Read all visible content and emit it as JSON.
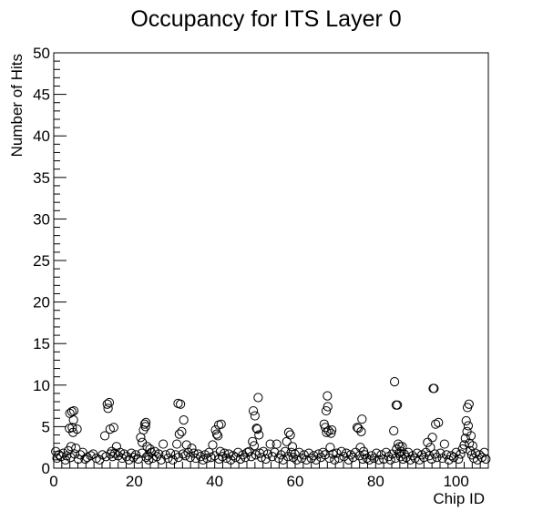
{
  "chart_data": {
    "type": "scatter",
    "title": "Occupancy for ITS Layer 0",
    "xlabel": "Chip ID",
    "ylabel": "Number of Hits",
    "xlim": [
      0,
      108
    ],
    "ylim": [
      0,
      50
    ],
    "x_ticks": [
      0,
      20,
      40,
      60,
      80,
      100
    ],
    "y_ticks": [
      0,
      5,
      10,
      15,
      20,
      25,
      30,
      35,
      40,
      45,
      50
    ],
    "grid": false,
    "legend": "none",
    "marker": "open-circle",
    "marker_color": "#000000",
    "points": [
      [
        0.5,
        2.0
      ],
      [
        0.8,
        1.2
      ],
      [
        1.3,
        1.6
      ],
      [
        1.8,
        1.4
      ],
      [
        2.4,
        1.8
      ],
      [
        2.9,
        1.0
      ],
      [
        3.2,
        1.5
      ],
      [
        3.6,
        2.1
      ],
      [
        3.9,
        4.8
      ],
      [
        4.0,
        6.6
      ],
      [
        4.2,
        1.3
      ],
      [
        4.3,
        2.6
      ],
      [
        4.5,
        6.8
      ],
      [
        4.6,
        4.9
      ],
      [
        4.8,
        4.3
      ],
      [
        4.9,
        5.8
      ],
      [
        5.0,
        6.9
      ],
      [
        5.2,
        1.7
      ],
      [
        5.5,
        2.4
      ],
      [
        5.8,
        4.7
      ],
      [
        6.1,
        1.1
      ],
      [
        6.6,
        1.6
      ],
      [
        7.2,
        1.9
      ],
      [
        7.8,
        1.1
      ],
      [
        8.3,
        1.3
      ],
      [
        9.2,
        1.5
      ],
      [
        9.8,
        1.7
      ],
      [
        10.6,
        1.2
      ],
      [
        11.4,
        1.0
      ],
      [
        12.1,
        1.6
      ],
      [
        12.7,
        3.9
      ],
      [
        13.0,
        1.4
      ],
      [
        13.3,
        7.7
      ],
      [
        13.5,
        7.2
      ],
      [
        13.8,
        7.9
      ],
      [
        14.0,
        4.7
      ],
      [
        14.1,
        1.7
      ],
      [
        14.4,
        2.0
      ],
      [
        14.6,
        1.4
      ],
      [
        14.9,
        4.9
      ],
      [
        15.2,
        1.8
      ],
      [
        15.6,
        2.6
      ],
      [
        16.0,
        1.5
      ],
      [
        16.5,
        1.9
      ],
      [
        17.0,
        1.2
      ],
      [
        17.5,
        1.7
      ],
      [
        18.1,
        1.4
      ],
      [
        18.7,
        1.0
      ],
      [
        19.3,
        1.8
      ],
      [
        19.8,
        1.3
      ],
      [
        20.4,
        1.6
      ],
      [
        21.0,
        1.1
      ],
      [
        21.6,
        3.7
      ],
      [
        21.9,
        1.8
      ],
      [
        22.0,
        3.1
      ],
      [
        22.3,
        4.6
      ],
      [
        22.6,
        5.3
      ],
      [
        22.8,
        5.0
      ],
      [
        22.9,
        5.5
      ],
      [
        23.0,
        1.3
      ],
      [
        23.2,
        2.6
      ],
      [
        23.4,
        1.5
      ],
      [
        23.6,
        1.0
      ],
      [
        23.9,
        2.3
      ],
      [
        24.2,
        1.9
      ],
      [
        24.6,
        1.2
      ],
      [
        25.1,
        2.0
      ],
      [
        25.6,
        1.4
      ],
      [
        26.1,
        1.7
      ],
      [
        26.7,
        1.0
      ],
      [
        27.2,
        2.9
      ],
      [
        27.8,
        1.6
      ],
      [
        28.4,
        1.2
      ],
      [
        29.0,
        1.8
      ],
      [
        29.6,
        1.0
      ],
      [
        30.3,
        1.6
      ],
      [
        30.6,
        2.9
      ],
      [
        30.9,
        7.8
      ],
      [
        31.0,
        1.3
      ],
      [
        31.2,
        4.1
      ],
      [
        31.5,
        7.7
      ],
      [
        31.8,
        4.4
      ],
      [
        32.1,
        1.7
      ],
      [
        32.3,
        5.8
      ],
      [
        32.7,
        1.5
      ],
      [
        33.0,
        2.8
      ],
      [
        33.4,
        1.9
      ],
      [
        33.9,
        1.3
      ],
      [
        34.3,
        2.4
      ],
      [
        34.8,
        1.8
      ],
      [
        35.3,
        1.2
      ],
      [
        35.9,
        1.7
      ],
      [
        36.5,
        1.4
      ],
      [
        37.1,
        1.0
      ],
      [
        37.6,
        1.6
      ],
      [
        38.1,
        1.2
      ],
      [
        38.6,
        1.9
      ],
      [
        39.1,
        1.3
      ],
      [
        39.5,
        2.8
      ],
      [
        40.0,
        1.5
      ],
      [
        40.2,
        4.6
      ],
      [
        40.5,
        4.1
      ],
      [
        40.8,
        3.9
      ],
      [
        41.0,
        5.2
      ],
      [
        41.1,
        1.1
      ],
      [
        41.4,
        2.0
      ],
      [
        41.6,
        5.3
      ],
      [
        41.9,
        1.4
      ],
      [
        42.4,
        1.8
      ],
      [
        42.9,
        1.2
      ],
      [
        43.5,
        1.7
      ],
      [
        44.0,
        1.0
      ],
      [
        44.6,
        1.5
      ],
      [
        45.2,
        1.3
      ],
      [
        45.8,
        1.9
      ],
      [
        46.4,
        1.1
      ],
      [
        47.0,
        1.6
      ],
      [
        47.6,
        1.3
      ],
      [
        48.1,
        1.9
      ],
      [
        48.6,
        2.0
      ],
      [
        49.1,
        1.4
      ],
      [
        49.4,
        3.2
      ],
      [
        49.6,
        6.9
      ],
      [
        49.8,
        2.7
      ],
      [
        50.0,
        6.3
      ],
      [
        50.2,
        1.6
      ],
      [
        50.4,
        4.8
      ],
      [
        50.6,
        4.7
      ],
      [
        50.8,
        8.5
      ],
      [
        51.0,
        4.0
      ],
      [
        51.2,
        1.8
      ],
      [
        51.6,
        1.3
      ],
      [
        52.1,
        2.0
      ],
      [
        52.7,
        1.1
      ],
      [
        53.2,
        1.7
      ],
      [
        53.8,
        2.9
      ],
      [
        54.3,
        1.4
      ],
      [
        54.9,
        1.9
      ],
      [
        55.4,
        2.9
      ],
      [
        55.9,
        1.2
      ],
      [
        56.5,
        1.6
      ],
      [
        57.0,
        1.0
      ],
      [
        57.5,
        2.0
      ],
      [
        57.9,
        3.2
      ],
      [
        58.2,
        1.4
      ],
      [
        58.4,
        4.3
      ],
      [
        58.8,
        4.0
      ],
      [
        59.0,
        1.9
      ],
      [
        59.3,
        2.6
      ],
      [
        59.5,
        1.3
      ],
      [
        59.9,
        1.7
      ],
      [
        60.4,
        1.0
      ],
      [
        61.0,
        1.9
      ],
      [
        61.6,
        1.2
      ],
      [
        62.2,
        1.6
      ],
      [
        62.8,
        1.0
      ],
      [
        63.4,
        1.8
      ],
      [
        64.0,
        1.2
      ],
      [
        64.6,
        1.5
      ],
      [
        65.2,
        1.0
      ],
      [
        65.8,
        1.7
      ],
      [
        66.4,
        1.3
      ],
      [
        66.9,
        1.9
      ],
      [
        67.2,
        5.3
      ],
      [
        67.4,
        1.6
      ],
      [
        67.5,
        4.9
      ],
      [
        67.7,
        6.9
      ],
      [
        67.8,
        4.3
      ],
      [
        68.0,
        8.7
      ],
      [
        68.1,
        7.4
      ],
      [
        68.3,
        4.5
      ],
      [
        68.5,
        1.2
      ],
      [
        68.7,
        2.5
      ],
      [
        68.9,
        4.2
      ],
      [
        69.1,
        4.6
      ],
      [
        69.4,
        1.7
      ],
      [
        69.8,
        1.0
      ],
      [
        70.3,
        1.8
      ],
      [
        70.9,
        1.2
      ],
      [
        71.5,
        2.0
      ],
      [
        72.1,
        1.4
      ],
      [
        72.7,
        1.8
      ],
      [
        73.3,
        1.0
      ],
      [
        73.8,
        1.6
      ],
      [
        74.4,
        1.3
      ],
      [
        75.0,
        1.9
      ],
      [
        75.4,
        4.9
      ],
      [
        75.7,
        4.8
      ],
      [
        76.0,
        1.5
      ],
      [
        76.2,
        2.5
      ],
      [
        76.4,
        4.4
      ],
      [
        76.6,
        5.9
      ],
      [
        76.8,
        1.1
      ],
      [
        77.0,
        2.0
      ],
      [
        77.3,
        1.6
      ],
      [
        77.8,
        1.2
      ],
      [
        78.4,
        1.0
      ],
      [
        79.0,
        1.5
      ],
      [
        79.6,
        1.2
      ],
      [
        80.2,
        1.8
      ],
      [
        80.8,
        1.0
      ],
      [
        81.4,
        1.6
      ],
      [
        82.0,
        1.1
      ],
      [
        82.6,
        1.9
      ],
      [
        83.2,
        1.4
      ],
      [
        83.7,
        1.0
      ],
      [
        84.1,
        1.7
      ],
      [
        84.5,
        4.5
      ],
      [
        84.7,
        10.4
      ],
      [
        84.9,
        1.2
      ],
      [
        85.1,
        7.6
      ],
      [
        85.2,
        2.3
      ],
      [
        85.4,
        7.6
      ],
      [
        85.6,
        2.9
      ],
      [
        85.8,
        1.8
      ],
      [
        86.0,
        2.6
      ],
      [
        86.2,
        1.4
      ],
      [
        86.4,
        2.0
      ],
      [
        86.6,
        2.6
      ],
      [
        86.8,
        1.1
      ],
      [
        87.1,
        1.7
      ],
      [
        87.6,
        1.3
      ],
      [
        88.1,
        1.9
      ],
      [
        88.6,
        1.0
      ],
      [
        89.2,
        1.5
      ],
      [
        89.8,
        1.2
      ],
      [
        90.3,
        1.8
      ],
      [
        90.9,
        1.0
      ],
      [
        91.5,
        1.6
      ],
      [
        92.0,
        1.3
      ],
      [
        92.5,
        1.9
      ],
      [
        92.9,
        3.1
      ],
      [
        93.3,
        1.5
      ],
      [
        93.6,
        2.5
      ],
      [
        93.9,
        1.1
      ],
      [
        94.1,
        3.7
      ],
      [
        94.3,
        9.6
      ],
      [
        94.5,
        9.6
      ],
      [
        94.7,
        1.7
      ],
      [
        94.9,
        5.3
      ],
      [
        95.2,
        1.3
      ],
      [
        95.6,
        5.5
      ],
      [
        96.1,
        1.8
      ],
      [
        96.6,
        1.2
      ],
      [
        97.1,
        2.9
      ],
      [
        97.6,
        1.6
      ],
      [
        98.2,
        1.0
      ],
      [
        98.8,
        1.5
      ],
      [
        99.4,
        1.3
      ],
      [
        100.0,
        1.9
      ],
      [
        100.6,
        1.1
      ],
      [
        101.1,
        1.7
      ],
      [
        101.6,
        2.3
      ],
      [
        102.0,
        2.8
      ],
      [
        102.3,
        3.6
      ],
      [
        102.5,
        5.7
      ],
      [
        102.7,
        4.4
      ],
      [
        102.8,
        7.3
      ],
      [
        103.0,
        5.1
      ],
      [
        103.2,
        7.7
      ],
      [
        103.3,
        3.0
      ],
      [
        103.5,
        2.1
      ],
      [
        103.7,
        3.9
      ],
      [
        103.9,
        1.6
      ],
      [
        104.1,
        2.7
      ],
      [
        104.4,
        1.2
      ],
      [
        104.8,
        1.8
      ],
      [
        105.3,
        1.0
      ],
      [
        105.8,
        1.6
      ],
      [
        106.4,
        1.3
      ],
      [
        107.0,
        1.9
      ],
      [
        107.4,
        1.1
      ]
    ]
  }
}
